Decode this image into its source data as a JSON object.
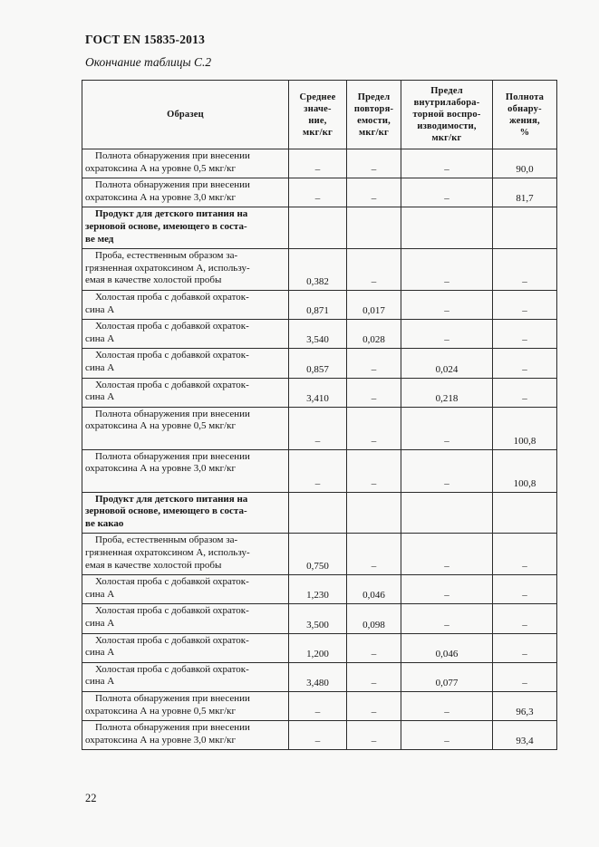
{
  "page": {
    "doc_code": "ГОСТ EN 15835-2013",
    "table_caption": "Окончание таблицы С.2",
    "page_number": "22"
  },
  "colors": {
    "page_bg": "#f8f8f7",
    "text": "#141414",
    "table_border": "#2b2b2b"
  },
  "table": {
    "columns": [
      {
        "label": "Образец"
      },
      {
        "label": "Среднее\nзначе-\nние,\nмкг/кг"
      },
      {
        "label": "Предел\nповторя-\nемости,\nмкг/кг"
      },
      {
        "label": "Предел\nвнутрилабора-\nторной воспро-\nизводимости,\nмкг/кг"
      },
      {
        "label": "Полнота\nобнару-\nжения,\n%"
      }
    ],
    "rows": [
      {
        "sample": "Полнота обнаружения при внесении\nохратоксина А на уровне 0,5 мкг/кг",
        "mean": "–",
        "rep": "–",
        "reprod": "–",
        "recov": "90,0",
        "section": false,
        "tall": false
      },
      {
        "sample": "Полнота обнаружения при внесении\nохратоксина А на уровне 3,0 мкг/кг",
        "mean": "–",
        "rep": "–",
        "reprod": "–",
        "recov": "81,7",
        "section": false,
        "tall": false
      },
      {
        "sample": "Продукт для детского питания на\nзерновой основе, имеющего в соста-\nве мед",
        "mean": "",
        "rep": "",
        "reprod": "",
        "recov": "",
        "section": true,
        "tall": false
      },
      {
        "sample": "Проба, естественным образом за-\nгрязненная охратоксином А, использу-\nемая в качестве холостой пробы",
        "mean": "0,382",
        "rep": "–",
        "reprod": "–",
        "recov": "–",
        "section": false,
        "tall": false
      },
      {
        "sample": "Холостая проба с добавкой охраток-\nсина А",
        "mean": "0,871",
        "rep": "0,017",
        "reprod": "–",
        "recov": "–",
        "section": false,
        "tall": false
      },
      {
        "sample": "Холостая проба с добавкой охраток-\nсина А",
        "mean": "3,540",
        "rep": "0,028",
        "reprod": "–",
        "recov": "–",
        "section": false,
        "tall": false
      },
      {
        "sample": "Холостая проба с добавкой охраток-\nсина А",
        "mean": "0,857",
        "rep": "–",
        "reprod": "0,024",
        "recov": "–",
        "section": false,
        "tall": false
      },
      {
        "sample": "Холостая проба с добавкой охраток-\nсина А",
        "mean": "3,410",
        "rep": "–",
        "reprod": "0,218",
        "recov": "–",
        "section": false,
        "tall": false
      },
      {
        "sample": "Полнота обнаружения при внесении\nохратоксина А на уровне 0,5 мкг/кг",
        "mean": "–",
        "rep": "–",
        "reprod": "–",
        "recov": "100,8",
        "section": false,
        "tall": true
      },
      {
        "sample": "Полнота обнаружения при внесении\nохратоксина А на уровне 3,0 мкг/кг",
        "mean": "–",
        "rep": "–",
        "reprod": "–",
        "recov": "100,8",
        "section": false,
        "tall": true
      },
      {
        "sample": "Продукт для детского питания на\nзерновой основе, имеющего в соста-\nве какао",
        "mean": "",
        "rep": "",
        "reprod": "",
        "recov": "",
        "section": true,
        "tall": false
      },
      {
        "sample": "Проба, естественным образом за-\nгрязненная охратоксином А, использу-\nемая в качестве холостой пробы",
        "mean": "0,750",
        "rep": "–",
        "reprod": "–",
        "recov": "–",
        "section": false,
        "tall": false
      },
      {
        "sample": "Холостая проба с добавкой охраток-\nсина А",
        "mean": "1,230",
        "rep": "0,046",
        "reprod": "–",
        "recov": "–",
        "section": false,
        "tall": false
      },
      {
        "sample": "Холостая проба с добавкой охраток-\nсина А",
        "mean": "3,500",
        "rep": "0,098",
        "reprod": "–",
        "recov": "–",
        "section": false,
        "tall": false
      },
      {
        "sample": "Холостая проба с добавкой охраток-\nсина А",
        "mean": "1,200",
        "rep": "–",
        "reprod": "0,046",
        "recov": "–",
        "section": false,
        "tall": false
      },
      {
        "sample": "Холостая проба с добавкой охраток-\nсина А",
        "mean": "3,480",
        "rep": "–",
        "reprod": "0,077",
        "recov": "–",
        "section": false,
        "tall": false
      },
      {
        "sample": "Полнота обнаружения при внесении\nохратоксина А на уровне 0,5 мкг/кг",
        "mean": "–",
        "rep": "–",
        "reprod": "–",
        "recov": "96,3",
        "section": false,
        "tall": false
      },
      {
        "sample": "Полнота обнаружения при внесении\nохратоксина А на уровне 3,0 мкг/кг",
        "mean": "–",
        "rep": "–",
        "reprod": "–",
        "recov": "93,4",
        "section": false,
        "tall": false
      }
    ]
  }
}
